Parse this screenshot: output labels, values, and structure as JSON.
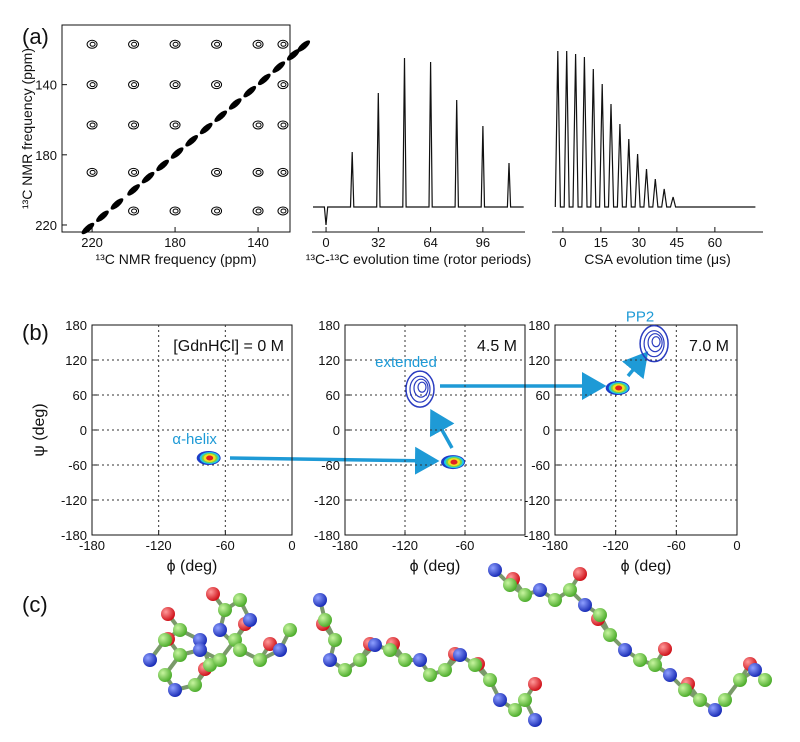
{
  "panel_labels": [
    "(a)",
    "(b)",
    "(c)"
  ],
  "chart_data": [
    {
      "type": "contour",
      "xlabel": "¹³C NMR frequency (ppm)",
      "ylabel": "¹³C NMR frequency (ppm)",
      "xlim": [
        234.5,
        124.6
      ],
      "ylim": [
        224,
        106
      ],
      "xticks": [
        220,
        180,
        140
      ],
      "yticks": [
        140,
        180,
        220
      ],
      "x": [
        128,
        140,
        160,
        180,
        200,
        220,
        128,
        160,
        180,
        200,
        220,
        128,
        140,
        180,
        200,
        220,
        128,
        140,
        160,
        200,
        220,
        128,
        140,
        160,
        180,
        200
      ],
      "y": [
        117,
        117,
        117,
        117,
        117,
        117,
        140,
        140,
        140,
        140,
        140,
        163,
        163,
        163,
        163,
        163,
        190,
        190,
        190,
        190,
        190,
        212,
        212,
        212,
        212,
        212
      ],
      "diagonal": {
        "x": [
          222,
          215,
          208,
          200,
          193,
          186,
          179,
          172,
          165,
          158,
          151,
          144,
          137,
          130,
          123,
          118
        ],
        "y": [
          222,
          215,
          208,
          200,
          193,
          186,
          179,
          172,
          165,
          158,
          151,
          144,
          137,
          130,
          123,
          118
        ]
      },
      "color": "#000000"
    },
    {
      "type": "line",
      "xlabel": "¹³C-¹³C evolution time (rotor periods)",
      "xlim": [
        -8.6,
        121.8
      ],
      "ylim": [
        -25,
        182
      ],
      "xticks": [
        0,
        32,
        64,
        96
      ],
      "color": "#111111",
      "x": [
        -8,
        -1,
        0,
        1,
        15,
        16,
        17,
        31,
        32,
        33,
        47,
        48,
        49,
        63,
        64,
        65,
        79,
        80,
        81,
        95,
        96,
        97,
        111,
        112,
        113,
        121
      ],
      "values": [
        0,
        0,
        -18,
        0,
        0,
        55,
        0,
        0,
        114,
        0,
        0,
        149,
        0,
        0,
        145,
        0,
        0,
        107,
        0,
        0,
        81,
        0,
        0,
        44,
        0,
        0
      ]
    },
    {
      "type": "line",
      "xlabel": "CSA evolution time (μs)",
      "xlim": [
        -4.3,
        79
      ],
      "ylim": [
        -25,
        182
      ],
      "xticks": [
        0,
        15,
        30,
        45,
        60
      ],
      "color": "#111111",
      "x": [
        -3,
        -2,
        -1,
        0.5,
        1.5,
        2.5,
        4,
        5,
        6,
        7.5,
        8.5,
        9.5,
        11,
        12,
        13,
        14.5,
        15.5,
        16.5,
        18,
        19,
        20,
        21.5,
        22.5,
        23.5,
        25,
        26,
        27,
        28.5,
        29.5,
        30.5,
        32,
        33,
        34,
        35.5,
        36.5,
        37.5,
        39,
        40,
        41,
        42.5,
        43.5,
        44.5,
        76
      ],
      "values": [
        0,
        156,
        0,
        0,
        156,
        0,
        0,
        153,
        0,
        0,
        150,
        0,
        0,
        138,
        0,
        0,
        123,
        0,
        0,
        103,
        0,
        0,
        83,
        0,
        0,
        68,
        0,
        0,
        53,
        0,
        0,
        38,
        0,
        0,
        28,
        0,
        0,
        18,
        0,
        0,
        10,
        0,
        0
      ]
    },
    {
      "type": "density",
      "annotation": "[GdnHCl] = 0 M",
      "xlabel": "ϕ (deg)",
      "ylabel": "ψ (deg)",
      "xlim": [
        -180,
        0
      ],
      "ylim": [
        -180,
        180
      ],
      "xticks": [
        -180,
        -120,
        -60,
        0
      ],
      "yticks": [
        -180,
        -120,
        -60,
        0,
        60,
        120,
        180
      ],
      "grid": true,
      "x": [
        -75
      ],
      "y": [
        -48
      ],
      "labels": [
        "α-helix"
      ],
      "styles": [
        "filled"
      ],
      "label_color": "#1e9ad6"
    },
    {
      "type": "density",
      "annotation": "4.5 M",
      "xlabel": "ϕ (deg)",
      "xlim": [
        -180,
        0
      ],
      "ylim": [
        -180,
        180
      ],
      "xticks": [
        -180,
        -120,
        -60
      ],
      "yticks": [
        -180,
        -120,
        -60,
        0,
        60,
        120,
        180
      ],
      "grid": true,
      "x": [
        -72,
        -105
      ],
      "y": [
        -55,
        70
      ],
      "labels": [
        null,
        "extended"
      ],
      "styles": [
        "filled",
        "lines"
      ],
      "label_color": "#1e9ad6"
    },
    {
      "type": "density",
      "annotation": "7.0 M",
      "xlabel": "ϕ (deg)",
      "xlim": [
        -180,
        0
      ],
      "ylim": [
        -180,
        180
      ],
      "xticks": [
        -180,
        -120,
        -60,
        0
      ],
      "yticks": [
        -180,
        -120,
        -60,
        0,
        60,
        120,
        180
      ],
      "grid": true,
      "x": [
        -118,
        -82
      ],
      "y": [
        72,
        148
      ],
      "labels": [
        null,
        "PP2"
      ],
      "styles": [
        "filled",
        "lines"
      ],
      "label_color": "#1e9ad6"
    }
  ]
}
